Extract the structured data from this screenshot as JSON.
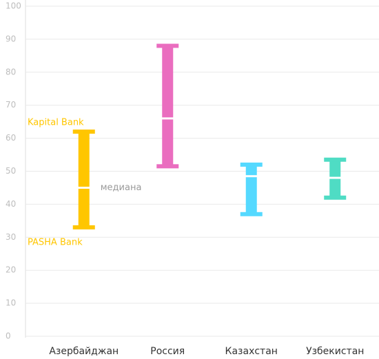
{
  "chart_data": {
    "type": "range",
    "categories": [
      "Азербайджан",
      "Россия",
      "Казахстан",
      "Узбекистан"
    ],
    "low": [
      33,
      51.5,
      37,
      42
    ],
    "high": [
      62,
      88,
      52,
      53.5
    ],
    "median": [
      45,
      66,
      48.5,
      48
    ],
    "colors": [
      "#ffc600",
      "#ea6dbf",
      "#55d9ff",
      "#4fdcc4"
    ],
    "annotations": {
      "high_label": "Kapital Bank",
      "low_label": "PASHA Bank",
      "median_label": "медиана"
    },
    "ylim": [
      0,
      100
    ],
    "yticks": [
      0,
      10,
      20,
      30,
      40,
      50,
      60,
      70,
      80,
      90,
      100
    ],
    "grid": true
  }
}
